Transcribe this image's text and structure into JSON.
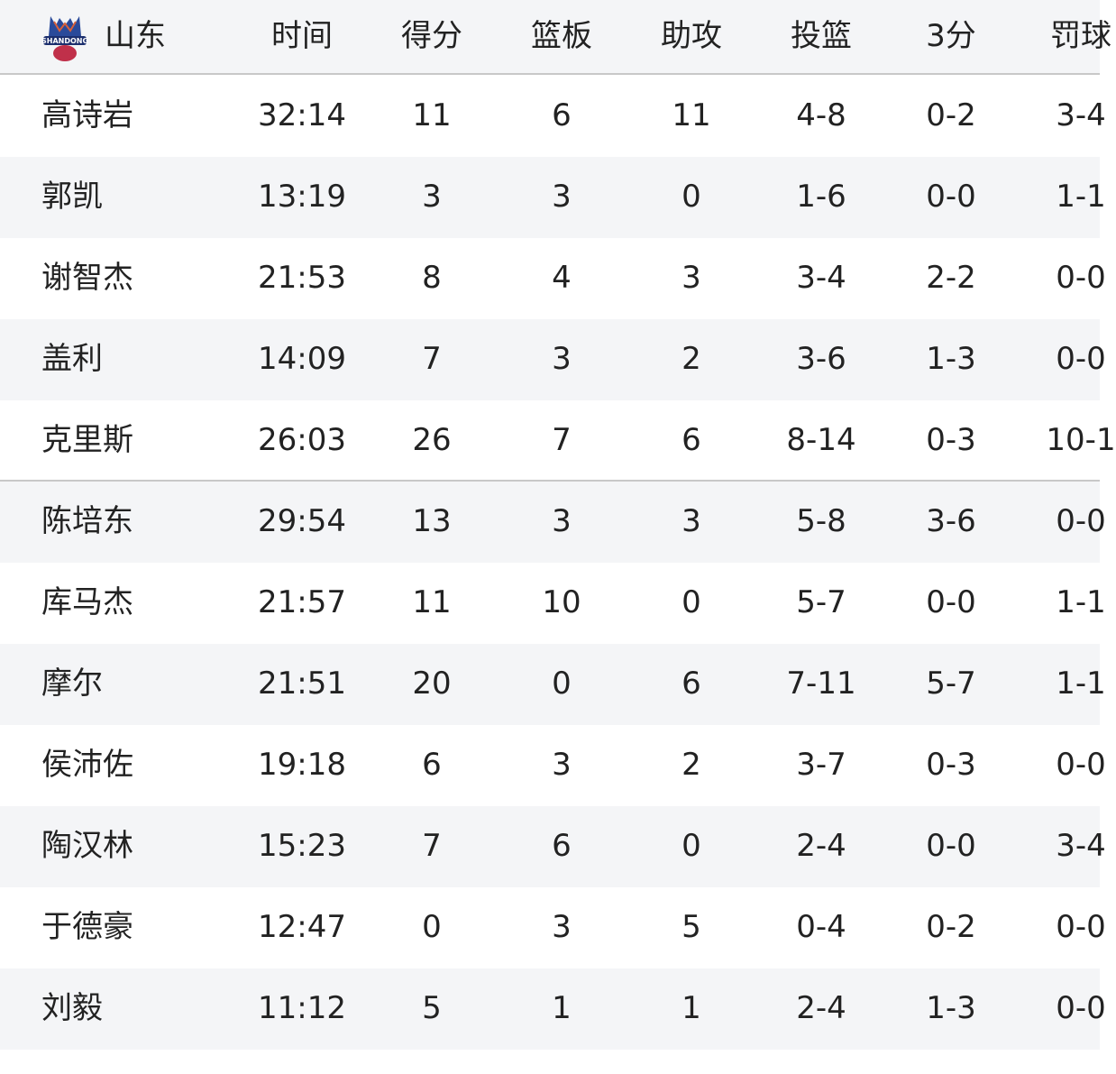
{
  "team": {
    "name": "山东",
    "logo_text": "SHANDONG"
  },
  "columns": [
    "时间",
    "得分",
    "篮板",
    "助攻",
    "投篮",
    "3分",
    "罚球"
  ],
  "colors": {
    "header_bg": "#f4f5f7",
    "alt_row_bg": "#f4f5f7",
    "divider": "#c8c8c8",
    "text": "#222222"
  },
  "players": [
    {
      "name": "高诗岩",
      "stats": [
        "32:14",
        "11",
        "6",
        "11",
        "4-8",
        "0-2",
        "3-4"
      ]
    },
    {
      "name": "郭凯",
      "stats": [
        "13:19",
        "3",
        "3",
        "0",
        "1-6",
        "0-0",
        "1-1"
      ]
    },
    {
      "name": "谢智杰",
      "stats": [
        "21:53",
        "8",
        "4",
        "3",
        "3-4",
        "2-2",
        "0-0"
      ]
    },
    {
      "name": "盖利",
      "stats": [
        "14:09",
        "7",
        "3",
        "2",
        "3-6",
        "1-3",
        "0-0"
      ]
    },
    {
      "name": "克里斯",
      "stats": [
        "26:03",
        "26",
        "7",
        "6",
        "8-14",
        "0-3",
        "10-1"
      ]
    },
    {
      "name": "陈培东",
      "stats": [
        "29:54",
        "13",
        "3",
        "3",
        "5-8",
        "3-6",
        "0-0"
      ]
    },
    {
      "name": "库马杰",
      "stats": [
        "21:57",
        "11",
        "10",
        "0",
        "5-7",
        "0-0",
        "1-1"
      ]
    },
    {
      "name": "摩尔",
      "stats": [
        "21:51",
        "20",
        "0",
        "6",
        "7-11",
        "5-7",
        "1-1"
      ]
    },
    {
      "name": "侯沛佐",
      "stats": [
        "19:18",
        "6",
        "3",
        "2",
        "3-7",
        "0-3",
        "0-0"
      ]
    },
    {
      "name": "陶汉林",
      "stats": [
        "15:23",
        "7",
        "6",
        "0",
        "2-4",
        "0-0",
        "3-4"
      ]
    },
    {
      "name": "于德豪",
      "stats": [
        "12:47",
        "0",
        "3",
        "5",
        "0-4",
        "0-2",
        "0-0"
      ]
    },
    {
      "name": "刘毅",
      "stats": [
        "11:12",
        "5",
        "1",
        "1",
        "2-4",
        "1-3",
        "0-0"
      ]
    }
  ]
}
